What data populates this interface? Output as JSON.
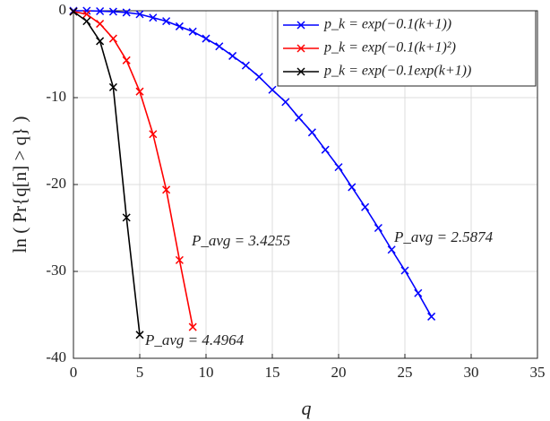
{
  "chart_data": {
    "type": "line",
    "xlabel": "q",
    "ylabel": "ln ( Pr{q[n] > q} )",
    "xlim": [
      0,
      35
    ],
    "ylim": [
      -40,
      0
    ],
    "xticks": [
      0,
      5,
      10,
      15,
      20,
      25,
      30,
      35
    ],
    "yticks": [
      -40,
      -30,
      -20,
      -10,
      0
    ],
    "grid": true,
    "legend": "upper right",
    "series": [
      {
        "name": "p_k = exp(−0.1(k+1))",
        "color": "#0000ff",
        "x": [
          0,
          1,
          2,
          3,
          4,
          5,
          6,
          7,
          8,
          9,
          10,
          11,
          12,
          13,
          14,
          15,
          16,
          17,
          18,
          19,
          20,
          21,
          22,
          23,
          24,
          25,
          26,
          27
        ],
        "values": [
          0,
          0,
          -0.05,
          -0.1,
          -0.2,
          -0.4,
          -0.8,
          -1.2,
          -1.8,
          -2.4,
          -3.2,
          -4.1,
          -5.2,
          -6.3,
          -7.6,
          -9.1,
          -10.5,
          -12.3,
          -14.0,
          -16.0,
          -18.0,
          -20.3,
          -22.6,
          -25.0,
          -27.5,
          -29.9,
          -32.5,
          -35.2
        ]
      },
      {
        "name": "p_k = exp(−0.1(k+1)²)",
        "color": "#ff0000",
        "x": [
          0,
          1,
          2,
          3,
          4,
          5,
          6,
          7,
          8,
          9
        ],
        "values": [
          -0.1,
          -0.4,
          -1.5,
          -3.2,
          -5.7,
          -9.3,
          -14.2,
          -20.6,
          -28.7,
          -36.4
        ]
      },
      {
        "name": "p_k = exp(−0.1exp(k+1))",
        "color": "#000000",
        "x": [
          0,
          1,
          2,
          3,
          4,
          5
        ],
        "values": [
          -0.1,
          -1.2,
          -3.5,
          -8.8,
          -23.8,
          -37.3
        ]
      }
    ],
    "annotations": [
      "P_avg = 2.5874",
      "P_avg = 3.4255",
      "P_avg = 4.4964"
    ]
  }
}
